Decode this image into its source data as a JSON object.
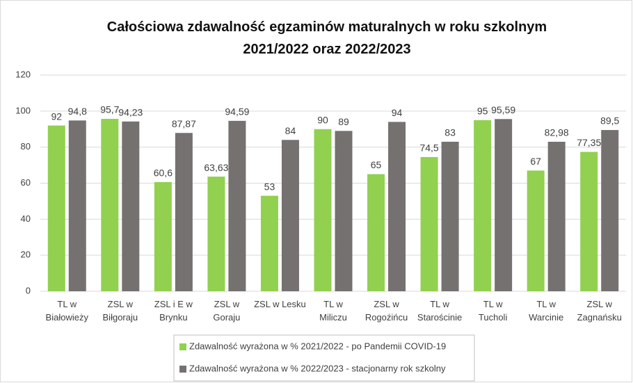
{
  "chart_data": {
    "type": "bar",
    "title": "Całościowa zdawalność egzaminów maturalnych  w roku szkolnym\n2021/2022 oraz 2022/2023",
    "categories": [
      "TL w\nBiałowieży",
      "ZSL w\nBiłgoraju",
      "ZSL i E w\nBrynku",
      "ZSL w\nGoraju",
      "ZSL w Lesku",
      "TL w\nMiliczu",
      "ZSL w\nRogoźińcu",
      "TL w\nStarościnie",
      "TL w\nTucholi",
      "TL w\nWarcinie",
      "ZSL w\nZagnańsku"
    ],
    "series": [
      {
        "name": "Zdawalność wyrażona w  % 2021/2022 - po Pandemii COVID-19",
        "color": "#92d050",
        "values": [
          92,
          95.7,
          60.6,
          63.63,
          53,
          90,
          65,
          74.5,
          95,
          67,
          77.35
        ],
        "value_labels": [
          "92",
          "95,7",
          "60,6",
          "63,63",
          "53",
          "90",
          "65",
          "74,5",
          "95",
          "67",
          "77,35"
        ]
      },
      {
        "name": "Zdawalność wyrażona w  % 2022/2023 - stacjonarny rok szkolny",
        "color": "#767171",
        "values": [
          94.8,
          94.23,
          87.87,
          94.59,
          84,
          89,
          94,
          83,
          95.59,
          82.98,
          89.5
        ],
        "value_labels": [
          "94,8",
          "94,23",
          "87,87",
          "94,59",
          "84",
          "89",
          "94",
          "83",
          "95,59",
          "82,98",
          "89,5"
        ]
      }
    ],
    "ylim": [
      0,
      120
    ],
    "yticks": [
      0,
      20,
      40,
      60,
      80,
      100,
      120
    ],
    "grid": true,
    "legend": "bottom"
  }
}
